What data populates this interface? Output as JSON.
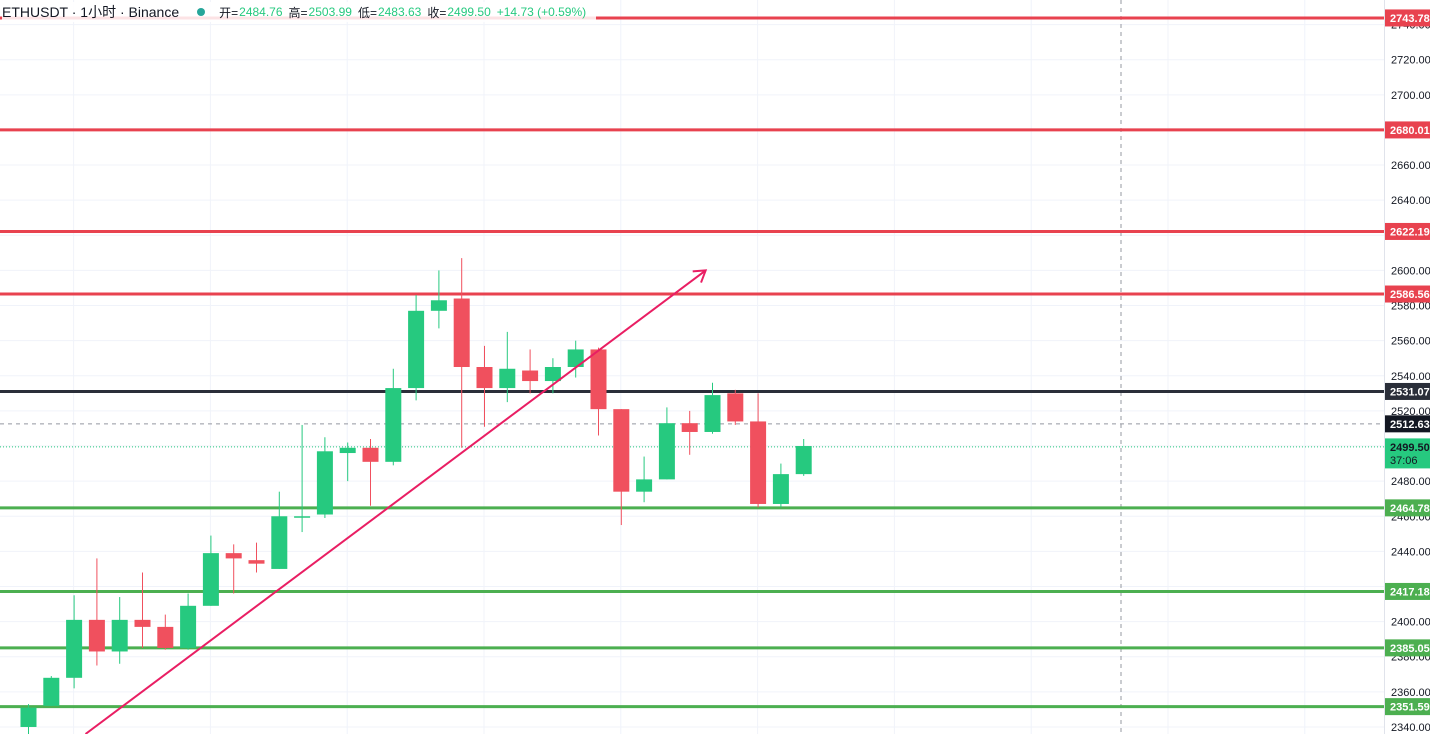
{
  "header": {
    "symbol_text": "ETHUSDT · 1小时 · Binance",
    "open_label": "开=",
    "open_value": "2484.76",
    "high_label": "高=",
    "high_value": "2503.99",
    "low_label": "低=",
    "low_value": "2483.63",
    "close_label": "收=",
    "close_value": "2499.50",
    "change_text": "+14.73 (+0.59%)"
  },
  "colors": {
    "up": "#26c97f",
    "down": "#f0505e",
    "hline_red": "#e8424f",
    "hline_green": "#4caf50",
    "hline_black": "#2a2e39",
    "trendline": "#e91e63",
    "grid": "#f0f3fa",
    "axis_text": "#131722"
  },
  "chart_data": {
    "type": "candlestick",
    "title": "ETHUSDT · 1小时 · Binance",
    "ylim": [
      2336,
      2754
    ],
    "y_ticks": [
      2340,
      2360,
      2380,
      2400,
      2420,
      2440,
      2460,
      2480,
      2500,
      2520,
      2540,
      2560,
      2580,
      2600,
      2620,
      2640,
      2660,
      2680,
      2700,
      2720,
      2740
    ],
    "y_tick_labels": [
      "2340.00",
      "2360.00",
      "2380.00",
      "2400.00",
      "2420.00",
      "2440.00",
      "2460.00",
      "2480.00",
      "2500.00",
      "2520.00",
      "2540.00",
      "2560.00",
      "2580.00",
      "2600.00",
      "2620.00",
      "2640.00",
      "2660.00",
      "2680.00",
      "2700.00",
      "2720.00",
      "2740.00"
    ],
    "candles": [
      {
        "o": 2340,
        "h": 2353,
        "l": 2336,
        "c": 2351
      },
      {
        "o": 2352,
        "h": 2369,
        "l": 2352,
        "c": 2368
      },
      {
        "o": 2368,
        "h": 2415,
        "l": 2362,
        "c": 2401
      },
      {
        "o": 2401,
        "h": 2436,
        "l": 2375,
        "c": 2383
      },
      {
        "o": 2383,
        "h": 2414,
        "l": 2376,
        "c": 2401
      },
      {
        "o": 2401,
        "h": 2428,
        "l": 2385,
        "c": 2397
      },
      {
        "o": 2397,
        "h": 2404,
        "l": 2384,
        "c": 2385
      },
      {
        "o": 2385,
        "h": 2416,
        "l": 2384,
        "c": 2409
      },
      {
        "o": 2409,
        "h": 2449,
        "l": 2409,
        "c": 2439
      },
      {
        "o": 2439,
        "h": 2444,
        "l": 2416,
        "c": 2436
      },
      {
        "o": 2435,
        "h": 2445,
        "l": 2428,
        "c": 2433
      },
      {
        "o": 2430,
        "h": 2474,
        "l": 2430,
        "c": 2460
      },
      {
        "o": 2460,
        "h": 2512,
        "l": 2451,
        "c": 2460
      },
      {
        "o": 2461,
        "h": 2505,
        "l": 2459,
        "c": 2497
      },
      {
        "o": 2496,
        "h": 2502,
        "l": 2480,
        "c": 2499
      },
      {
        "o": 2499,
        "h": 2504,
        "l": 2466,
        "c": 2491
      },
      {
        "o": 2491,
        "h": 2544,
        "l": 2489,
        "c": 2533
      },
      {
        "o": 2533,
        "h": 2586,
        "l": 2526,
        "c": 2577
      },
      {
        "o": 2577,
        "h": 2600,
        "l": 2567,
        "c": 2583
      },
      {
        "o": 2584,
        "h": 2607,
        "l": 2499,
        "c": 2545
      },
      {
        "o": 2545,
        "h": 2557,
        "l": 2511,
        "c": 2533
      },
      {
        "o": 2533,
        "h": 2565,
        "l": 2525,
        "c": 2544
      },
      {
        "o": 2543,
        "h": 2555,
        "l": 2530,
        "c": 2537
      },
      {
        "o": 2537,
        "h": 2550,
        "l": 2530,
        "c": 2545
      },
      {
        "o": 2545,
        "h": 2560,
        "l": 2539,
        "c": 2555
      },
      {
        "o": 2555,
        "h": 2556,
        "l": 2506,
        "c": 2521
      },
      {
        "o": 2521,
        "h": 2521,
        "l": 2455,
        "c": 2474
      },
      {
        "o": 2474,
        "h": 2494,
        "l": 2468,
        "c": 2481
      },
      {
        "o": 2481,
        "h": 2522,
        "l": 2481,
        "c": 2513
      },
      {
        "o": 2513,
        "h": 2520,
        "l": 2495,
        "c": 2508
      },
      {
        "o": 2508,
        "h": 2536,
        "l": 2507,
        "c": 2529
      },
      {
        "o": 2530,
        "h": 2532,
        "l": 2512,
        "c": 2514
      },
      {
        "o": 2514,
        "h": 2530,
        "l": 2465,
        "c": 2467
      },
      {
        "o": 2467,
        "h": 2490,
        "l": 2465,
        "c": 2484
      },
      {
        "o": 2484,
        "h": 2504,
        "l": 2483,
        "c": 2500
      }
    ],
    "horizontal_lines": [
      {
        "price": 2743.78,
        "label": "2743.78",
        "color": "red"
      },
      {
        "price": 2680.01,
        "label": "2680.01",
        "color": "red"
      },
      {
        "price": 2622.19,
        "label": "2622.19",
        "color": "red"
      },
      {
        "price": 2586.56,
        "label": "2586.56",
        "color": "red"
      },
      {
        "price": 2531.07,
        "label": "2531.07",
        "color": "black"
      },
      {
        "price": 2464.78,
        "label": "2464.78",
        "color": "green"
      },
      {
        "price": 2417.18,
        "label": "2417.18",
        "color": "green"
      },
      {
        "price": 2385.05,
        "label": "2385.05",
        "color": "green"
      },
      {
        "price": 2351.59,
        "label": "2351.59",
        "color": "green"
      }
    ],
    "crosshair_price": {
      "price": 2512.63,
      "label": "2512.63"
    },
    "last_price": {
      "price": 2499.5,
      "label": "2499.50",
      "countdown": "37:06"
    },
    "trendline": {
      "from": {
        "bar": 2.5,
        "price": 2336
      },
      "to": {
        "bar": 29.7,
        "price": 2600
      },
      "arrow": true
    }
  }
}
